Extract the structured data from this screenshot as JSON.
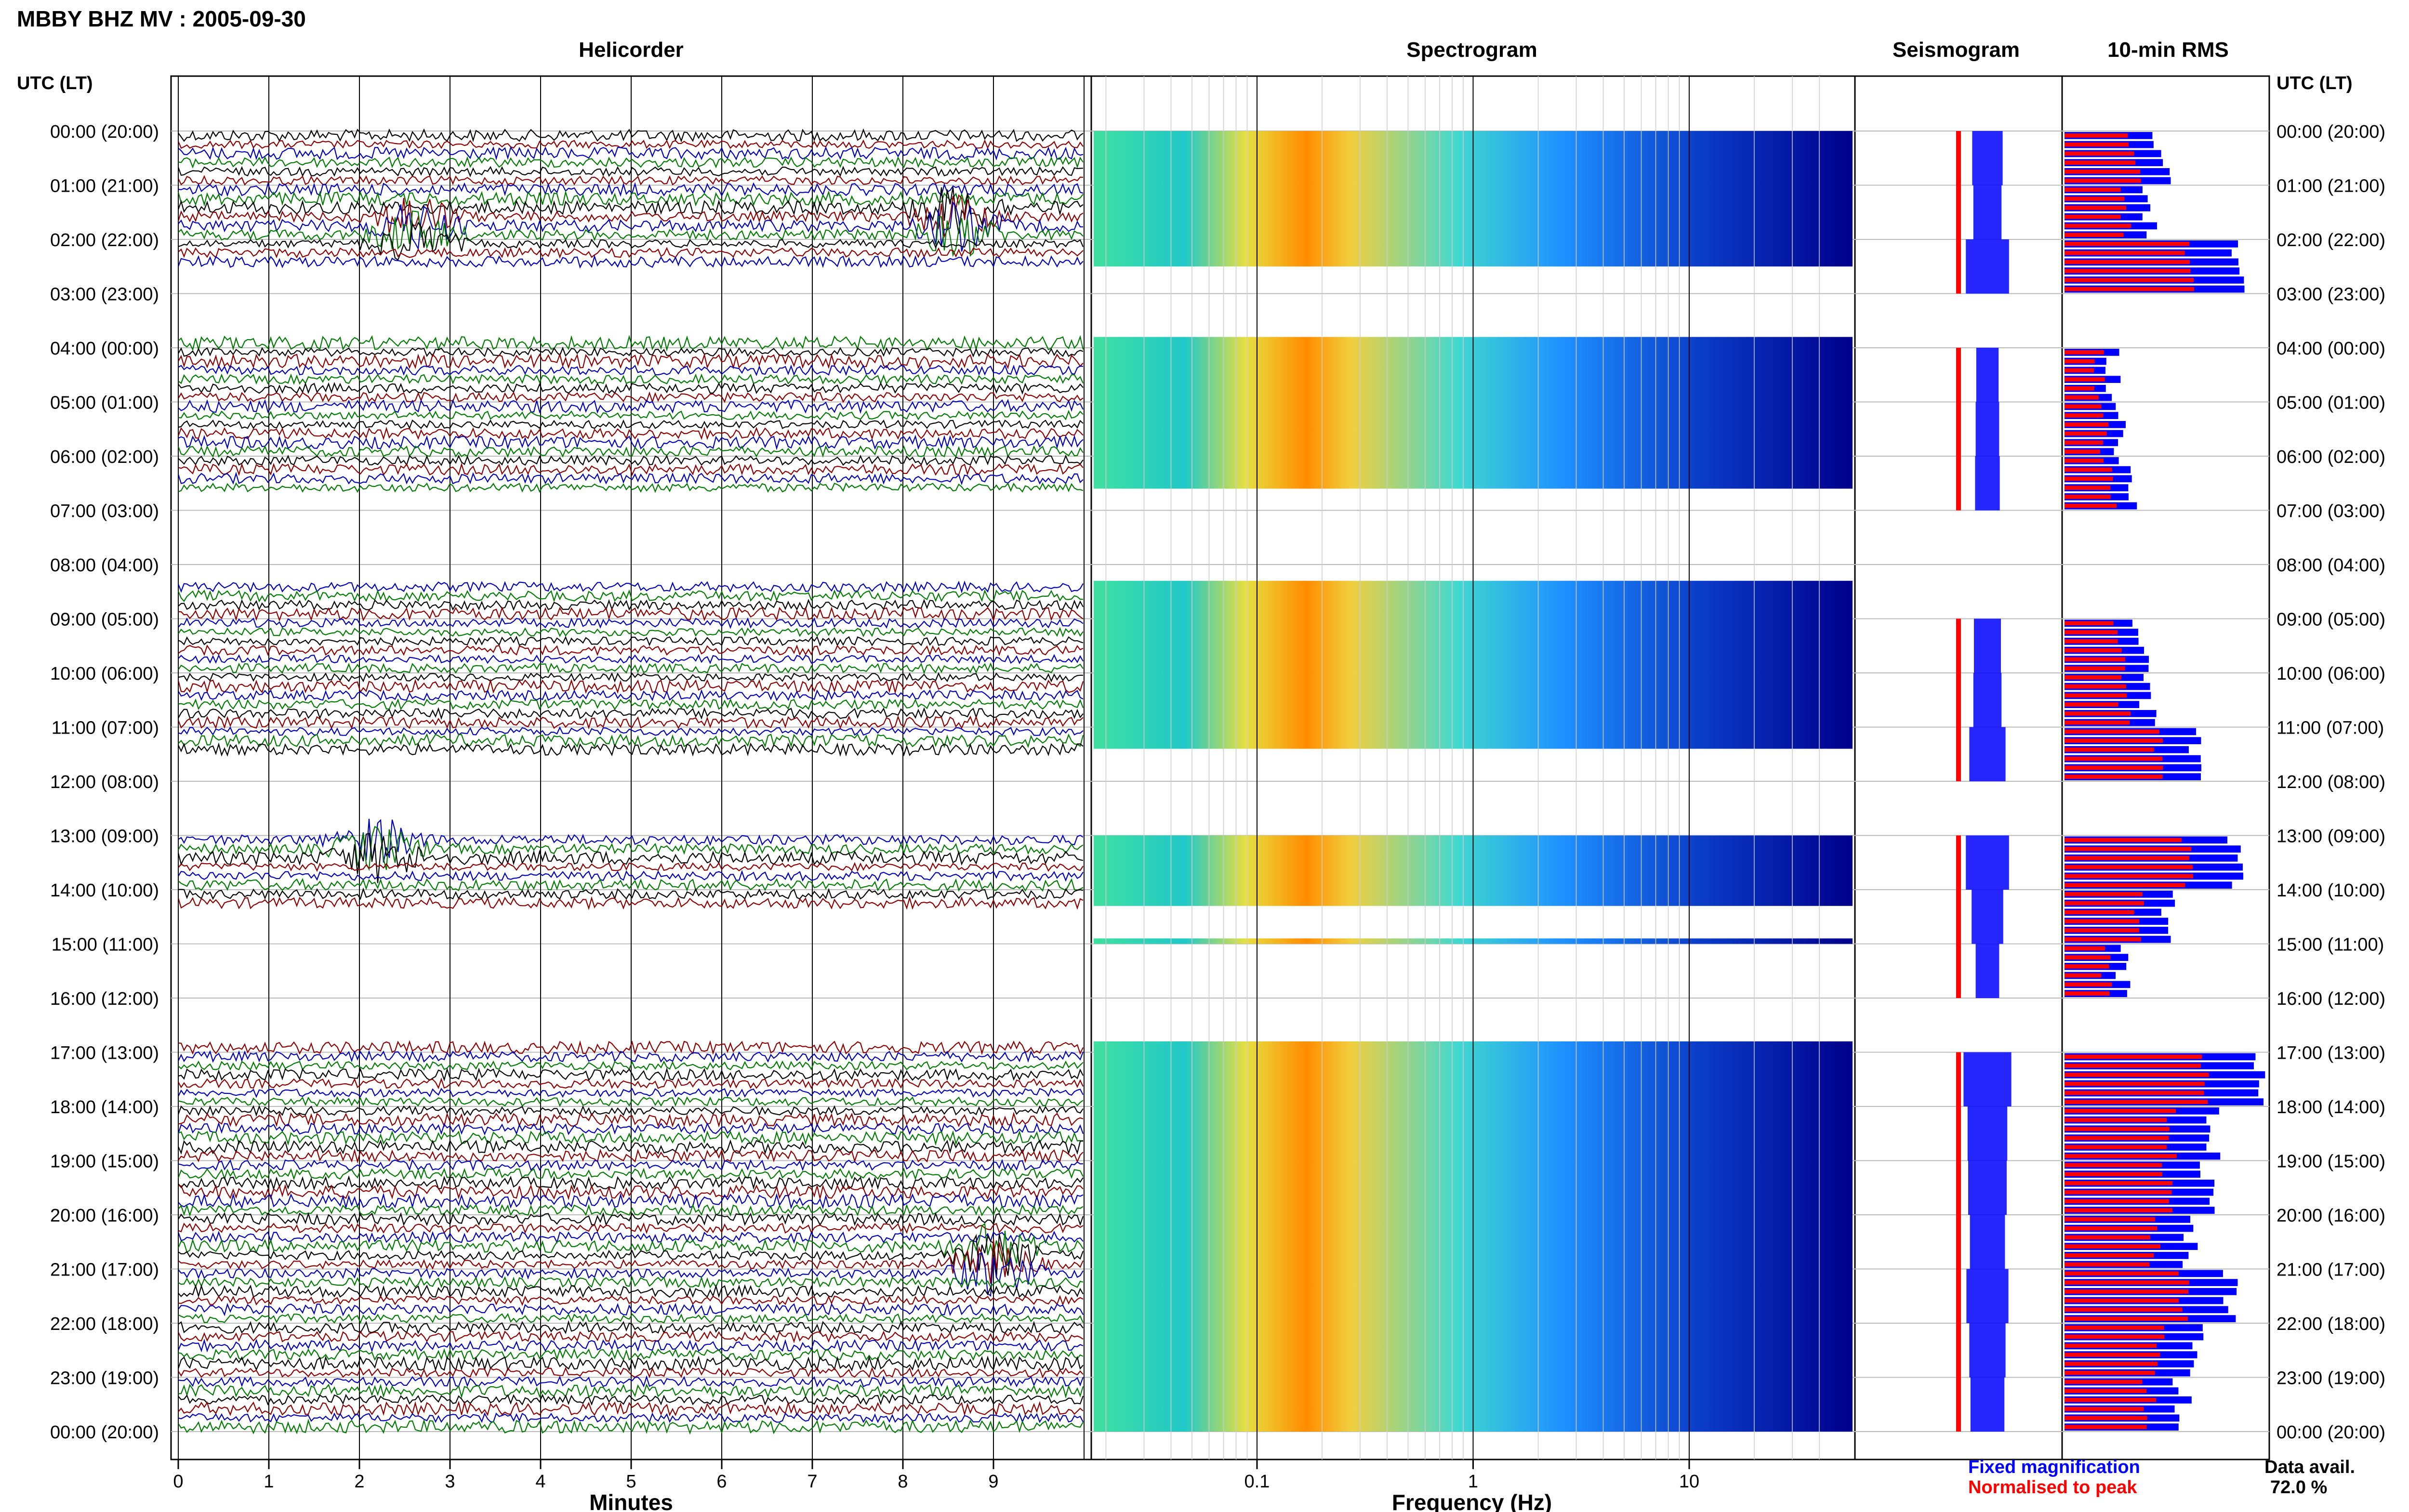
{
  "title": "MBBY BHZ MV : 2005-09-30",
  "panel_titles": {
    "helicorder": "Helicorder",
    "spectrogram": "Spectrogram",
    "seismogram": "Seismogram",
    "rms": "10-min RMS"
  },
  "row_axis_header": "UTC (LT)",
  "row_labels": [
    "00:00 (20:00)",
    "01:00 (21:00)",
    "02:00 (22:00)",
    "03:00 (23:00)",
    "04:00 (00:00)",
    "05:00 (01:00)",
    "06:00 (02:00)",
    "07:00 (03:00)",
    "08:00 (04:00)",
    "09:00 (05:00)",
    "10:00 (06:00)",
    "11:00 (07:00)",
    "12:00 (08:00)",
    "13:00 (09:00)",
    "14:00 (10:00)",
    "15:00 (11:00)",
    "16:00 (12:00)",
    "17:00 (13:00)",
    "18:00 (14:00)",
    "19:00 (15:00)",
    "20:00 (16:00)",
    "21:00 (17:00)",
    "22:00 (18:00)",
    "23:00 (19:00)",
    "00:00 (20:00)"
  ],
  "x_axes": {
    "minutes": {
      "label": "Minutes",
      "ticks": [
        "0",
        "1",
        "2",
        "3",
        "4",
        "5",
        "6",
        "7",
        "8",
        "9"
      ]
    },
    "frequency": {
      "label": "Frequency (Hz)",
      "ticks": [
        "0.1",
        "1",
        "10"
      ]
    }
  },
  "legend": {
    "fixed": "Fixed magnification",
    "normalised": "Normalised to peak",
    "fixed_color": "#0000ff",
    "normalised_color": "#ff0000"
  },
  "data_avail": {
    "label": "Data avail.",
    "value": "72.0 %"
  },
  "colors": {
    "trace_cycle": [
      "#000000",
      "#8b0000",
      "#0000b4",
      "#007a00"
    ],
    "spectrogram_low": "#00008b",
    "spectrogram_high": "#ff4500"
  },
  "chart_data": {
    "type": "heatmap",
    "title": "MBBY BHZ MV : 2005-09-30",
    "data_segments_utc_hours": [
      [
        0,
        2.5
      ],
      [
        3.8,
        6.6
      ],
      [
        8.3,
        11.4
      ],
      [
        13.0,
        14.3
      ],
      [
        14.9,
        15.0
      ],
      [
        16.8,
        24.0
      ]
    ],
    "notable_events": [
      {
        "hour": 1.8,
        "minute": 2.6,
        "label": "large event"
      },
      {
        "hour": 1.6,
        "minute": 8.6,
        "label": "event"
      },
      {
        "hour": 13.0,
        "minute": 2.2,
        "label": "burst"
      },
      {
        "hour": 20.7,
        "minute": 9.0,
        "label": "event"
      }
    ],
    "rms_10min_by_hour": [
      4.1,
      3.9,
      5.2,
      null,
      3.4,
      3.5,
      3.6,
      null,
      null,
      3.8,
      3.9,
      4.6,
      null,
      5.2,
      4.2,
      3.5,
      null,
      5.6,
      4.9,
      4.8,
      4.5,
      5.1,
      4.6,
      4.4
    ],
    "xlim_minutes": [
      0,
      10
    ],
    "xlim_frequency_hz": [
      0.02,
      50
    ],
    "frequency_scale": "log"
  }
}
